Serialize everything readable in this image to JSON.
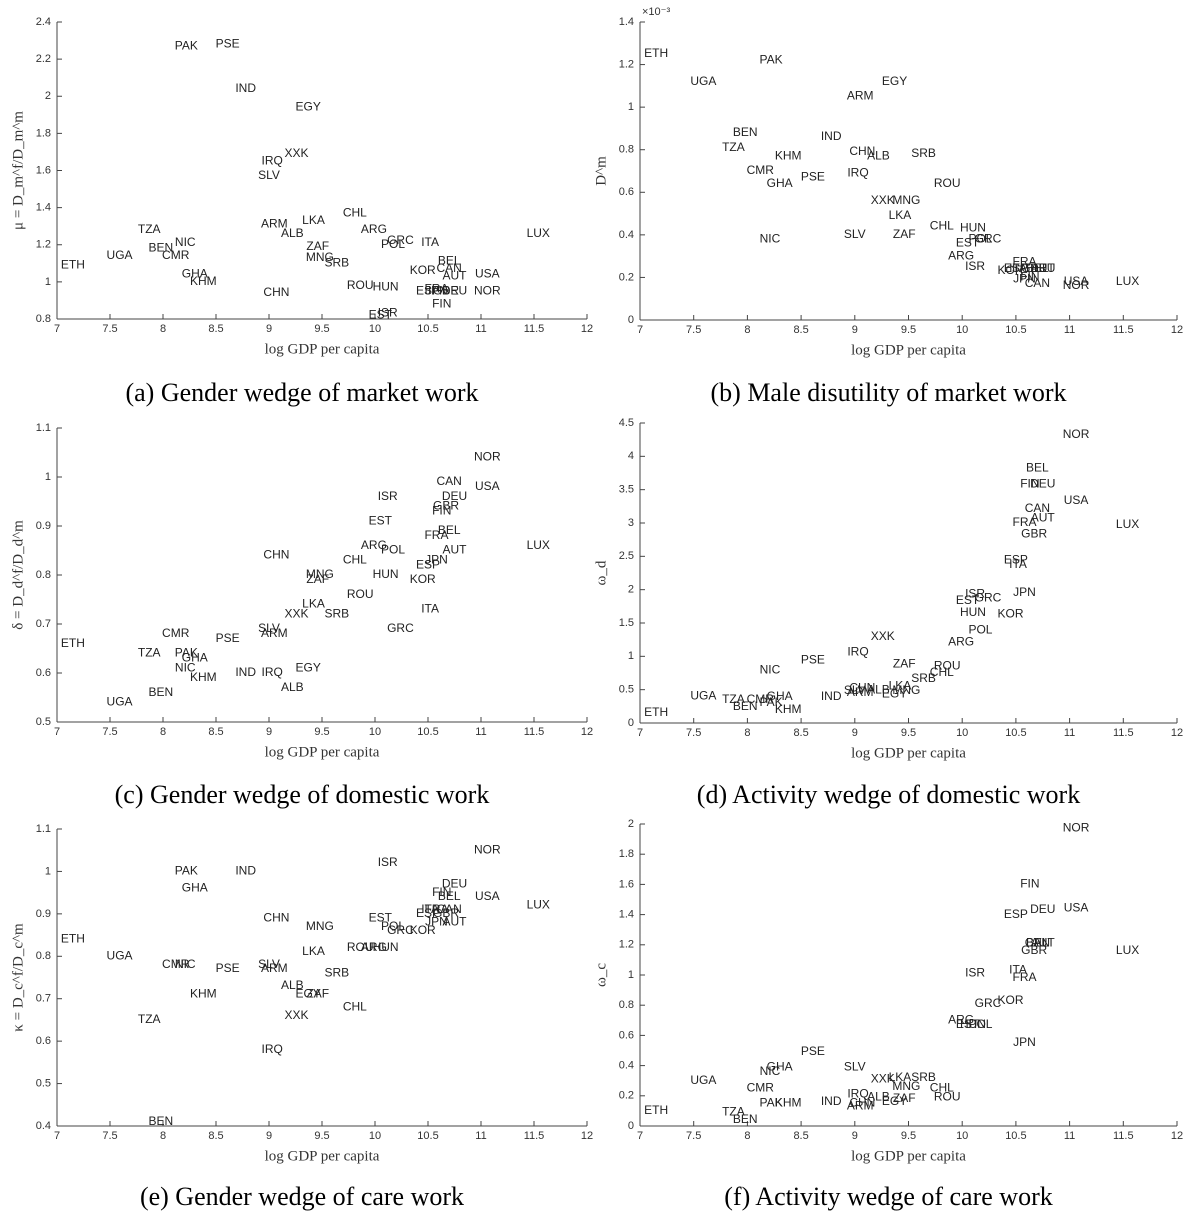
{
  "chart_data": [
    {
      "type": "scatter",
      "title": "(a) Gender wedge of market work",
      "xlabel": "log GDP per capita",
      "ylabel": "μ = D_m^f/D_m^m",
      "xlim": [
        7,
        12
      ],
      "xticks": [
        7,
        7.5,
        8,
        8.5,
        9,
        9.5,
        10,
        10.5,
        11,
        11.5,
        12
      ],
      "ylim": [
        0.8,
        2.4
      ],
      "yticks": [
        0.8,
        1,
        1.2,
        1.4,
        1.6,
        1.8,
        2,
        2.2,
        2.4
      ],
      "labels": [
        "ETH",
        "UGA",
        "TZA",
        "BEN",
        "NIC",
        "CMR",
        "PAK",
        "PSE",
        "IND",
        "GHA",
        "KHM",
        "EGY",
        "IRQ",
        "XXK",
        "SLV",
        "ARM",
        "ALB",
        "LKA",
        "CHN",
        "ZAF",
        "MNG",
        "SRB",
        "CHL",
        "ARG",
        "GRC",
        "POL",
        "ROU",
        "HUN",
        "ISR",
        "EST",
        "ITA",
        "KOR",
        "ESP",
        "BEL",
        "CAN",
        "AUT",
        "FRA",
        "JPN",
        "GBR",
        "DEU",
        "FIN",
        "USA",
        "NOR",
        "LUX"
      ],
      "x": [
        7.15,
        7.59,
        7.87,
        7.98,
        8.21,
        8.12,
        8.22,
        8.61,
        8.78,
        8.3,
        8.38,
        9.37,
        9.03,
        9.26,
        9.0,
        9.05,
        9.22,
        9.42,
        9.07,
        9.46,
        9.48,
        9.64,
        9.81,
        9.99,
        10.24,
        10.17,
        9.86,
        10.1,
        10.12,
        10.05,
        10.52,
        10.45,
        10.5,
        10.7,
        10.7,
        10.75,
        10.58,
        10.58,
        10.67,
        10.75,
        10.63,
        11.06,
        11.06,
        11.54
      ],
      "y": [
        1.09,
        1.14,
        1.28,
        1.18,
        1.21,
        1.14,
        2.27,
        2.28,
        2.04,
        1.04,
        1.0,
        1.94,
        1.65,
        1.69,
        1.57,
        1.31,
        1.26,
        1.33,
        0.94,
        1.19,
        1.13,
        1.1,
        1.37,
        1.28,
        1.22,
        1.2,
        0.98,
        0.97,
        0.83,
        0.82,
        1.21,
        1.06,
        0.95,
        1.11,
        1.07,
        1.03,
        0.96,
        0.95,
        0.95,
        0.95,
        0.88,
        1.04,
        0.95,
        1.26
      ]
    },
    {
      "type": "scatter",
      "title": "(b) Male disutility of market work",
      "xlabel": "log GDP per capita",
      "ylabel": "D^m",
      "y_exponent": "×10⁻³",
      "xlim": [
        7,
        12
      ],
      "xticks": [
        7,
        7.5,
        8,
        8.5,
        9,
        9.5,
        10,
        10.5,
        11,
        11.5,
        12
      ],
      "ylim": [
        0,
        1.4
      ],
      "yticks": [
        0,
        0.2,
        0.4,
        0.6,
        0.8,
        1,
        1.2,
        1.4
      ],
      "labels": [
        "ETH",
        "UGA",
        "TZA",
        "BEN",
        "NIC",
        "CMR",
        "PAK",
        "PSE",
        "IND",
        "GHA",
        "KHM",
        "EGY",
        "IRQ",
        "XXK",
        "SLV",
        "ARM",
        "ALB",
        "LKA",
        "CHN",
        "ZAF",
        "MNG",
        "SRB",
        "CHL",
        "ARG",
        "GRC",
        "POL",
        "ROU",
        "HUN",
        "ISR",
        "EST",
        "ITA",
        "KOR",
        "ESP",
        "BEL",
        "CAN",
        "AUT",
        "FRA",
        "JPN",
        "GBR",
        "DEU",
        "FIN",
        "USA",
        "NOR",
        "LUX"
      ],
      "x": [
        7.15,
        7.59,
        7.87,
        7.98,
        8.21,
        8.12,
        8.22,
        8.61,
        8.78,
        8.3,
        8.38,
        9.37,
        9.03,
        9.26,
        9.0,
        9.05,
        9.22,
        9.42,
        9.07,
        9.46,
        9.48,
        9.64,
        9.81,
        9.99,
        10.24,
        10.17,
        9.86,
        10.1,
        10.12,
        10.05,
        10.52,
        10.45,
        10.5,
        10.7,
        10.7,
        10.75,
        10.58,
        10.58,
        10.67,
        10.75,
        10.63,
        11.06,
        11.06,
        11.54
      ],
      "y": [
        1.25,
        1.12,
        0.81,
        0.88,
        0.38,
        0.7,
        1.22,
        0.67,
        0.86,
        0.64,
        0.77,
        1.12,
        0.69,
        0.56,
        0.4,
        1.05,
        0.77,
        0.49,
        0.79,
        0.4,
        0.56,
        0.78,
        0.44,
        0.3,
        0.38,
        0.38,
        0.64,
        0.43,
        0.25,
        0.36,
        0.24,
        0.23,
        0.24,
        0.24,
        0.17,
        0.24,
        0.27,
        0.19,
        0.24,
        0.24,
        0.2,
        0.18,
        0.16,
        0.18
      ]
    },
    {
      "type": "scatter",
      "title": "(c) Gender wedge of domestic work",
      "xlabel": "log GDP per capita",
      "ylabel": "δ = D_d^f/D_d^m",
      "xlim": [
        7,
        12
      ],
      "xticks": [
        7,
        7.5,
        8,
        8.5,
        9,
        9.5,
        10,
        10.5,
        11,
        11.5,
        12
      ],
      "ylim": [
        0.5,
        1.1
      ],
      "yticks": [
        0.5,
        0.6,
        0.7,
        0.8,
        0.9,
        1,
        1.1
      ],
      "labels": [
        "ETH",
        "UGA",
        "TZA",
        "BEN",
        "NIC",
        "CMR",
        "PAK",
        "PSE",
        "IND",
        "GHA",
        "KHM",
        "EGY",
        "IRQ",
        "XXK",
        "SLV",
        "ARM",
        "ALB",
        "LKA",
        "CHN",
        "ZAF",
        "MNG",
        "SRB",
        "CHL",
        "ARG",
        "GRC",
        "POL",
        "ROU",
        "HUN",
        "ISR",
        "EST",
        "ITA",
        "KOR",
        "ESP",
        "BEL",
        "CAN",
        "AUT",
        "FRA",
        "JPN",
        "GBR",
        "DEU",
        "FIN",
        "USA",
        "NOR",
        "LUX"
      ],
      "x": [
        7.15,
        7.59,
        7.87,
        7.98,
        8.21,
        8.12,
        8.22,
        8.61,
        8.78,
        8.3,
        8.38,
        9.37,
        9.03,
        9.26,
        9.0,
        9.05,
        9.22,
        9.42,
        9.07,
        9.46,
        9.48,
        9.64,
        9.81,
        9.99,
        10.24,
        10.17,
        9.86,
        10.1,
        10.12,
        10.05,
        10.52,
        10.45,
        10.5,
        10.7,
        10.7,
        10.75,
        10.58,
        10.58,
        10.67,
        10.75,
        10.63,
        11.06,
        11.06,
        11.54
      ],
      "y": [
        0.66,
        0.54,
        0.64,
        0.56,
        0.61,
        0.68,
        0.64,
        0.67,
        0.6,
        0.63,
        0.59,
        0.61,
        0.6,
        0.72,
        0.69,
        0.68,
        0.57,
        0.74,
        0.84,
        0.79,
        0.8,
        0.72,
        0.83,
        0.86,
        0.69,
        0.85,
        0.76,
        0.8,
        0.96,
        0.91,
        0.73,
        0.79,
        0.82,
        0.89,
        0.99,
        0.85,
        0.88,
        0.83,
        0.94,
        0.96,
        0.93,
        0.98,
        1.04,
        0.86
      ]
    },
    {
      "type": "scatter",
      "title": "(d) Activity wedge of domestic work",
      "xlabel": "log GDP per capita",
      "ylabel": "ω_d",
      "xlim": [
        7,
        12
      ],
      "xticks": [
        7,
        7.5,
        8,
        8.5,
        9,
        9.5,
        10,
        10.5,
        11,
        11.5,
        12
      ],
      "ylim": [
        0,
        4.5
      ],
      "yticks": [
        0,
        0.5,
        1,
        1.5,
        2,
        2.5,
        3,
        3.5,
        4,
        4.5
      ],
      "labels": [
        "ETH",
        "UGA",
        "TZA",
        "BEN",
        "NIC",
        "CMR",
        "PAK",
        "PSE",
        "IND",
        "GHA",
        "KHM",
        "EGY",
        "IRQ",
        "XXK",
        "SLV",
        "ARM",
        "ALB",
        "LKA",
        "CHN",
        "ZAF",
        "MNG",
        "SRB",
        "CHL",
        "ARG",
        "GRC",
        "POL",
        "ROU",
        "HUN",
        "ISR",
        "EST",
        "ITA",
        "KOR",
        "ESP",
        "BEL",
        "CAN",
        "AUT",
        "FRA",
        "JPN",
        "GBR",
        "DEU",
        "FIN",
        "USA",
        "NOR",
        "LUX"
      ],
      "x": [
        7.15,
        7.59,
        7.87,
        7.98,
        8.21,
        8.12,
        8.22,
        8.61,
        8.78,
        8.3,
        8.38,
        9.37,
        9.03,
        9.26,
        9.0,
        9.05,
        9.22,
        9.42,
        9.07,
        9.46,
        9.48,
        9.64,
        9.81,
        9.99,
        10.24,
        10.17,
        9.86,
        10.1,
        10.12,
        10.05,
        10.52,
        10.45,
        10.5,
        10.7,
        10.7,
        10.75,
        10.58,
        10.58,
        10.67,
        10.75,
        10.63,
        11.06,
        11.06,
        11.54
      ],
      "y": [
        0.15,
        0.4,
        0.35,
        0.24,
        0.79,
        0.35,
        0.3,
        0.94,
        0.39,
        0.39,
        0.2,
        0.43,
        1.06,
        1.29,
        0.48,
        0.45,
        0.49,
        0.55,
        0.52,
        0.88,
        0.48,
        0.66,
        0.75,
        1.21,
        1.87,
        1.39,
        0.85,
        1.65,
        1.93,
        1.83,
        2.37,
        1.63,
        2.44,
        3.82,
        3.21,
        3.07,
        3.0,
        1.95,
        2.83,
        3.58,
        3.58,
        3.33,
        4.32,
        2.97
      ]
    },
    {
      "type": "scatter",
      "title": "(e) Gender wedge of care work",
      "xlabel": "log GDP per capita",
      "ylabel": "κ = D_c^f/D_c^m",
      "xlim": [
        7,
        12
      ],
      "xticks": [
        7,
        7.5,
        8,
        8.5,
        9,
        9.5,
        10,
        10.5,
        11,
        11.5,
        12
      ],
      "ylim": [
        0.4,
        1.1
      ],
      "yticks": [
        0.4,
        0.5,
        0.6,
        0.7,
        0.8,
        0.9,
        1,
        1.1
      ],
      "labels": [
        "ETH",
        "UGA",
        "TZA",
        "BEN",
        "NIC",
        "CMR",
        "PAK",
        "PSE",
        "IND",
        "GHA",
        "KHM",
        "EGY",
        "IRQ",
        "XXK",
        "SLV",
        "ARM",
        "ALB",
        "LKA",
        "CHN",
        "ZAF",
        "MNG",
        "SRB",
        "CHL",
        "ARG",
        "GRC",
        "POL",
        "ROU",
        "HUN",
        "ISR",
        "EST",
        "ITA",
        "KOR",
        "ESP",
        "BEL",
        "CAN",
        "AUT",
        "FRA",
        "JPN",
        "GBR",
        "DEU",
        "FIN",
        "USA",
        "NOR",
        "LUX"
      ],
      "x": [
        7.15,
        7.59,
        7.87,
        7.98,
        8.21,
        8.12,
        8.22,
        8.61,
        8.78,
        8.3,
        8.38,
        9.37,
        9.03,
        9.26,
        9.0,
        9.05,
        9.22,
        9.42,
        9.07,
        9.46,
        9.48,
        9.64,
        9.81,
        9.99,
        10.24,
        10.17,
        9.86,
        10.1,
        10.12,
        10.05,
        10.52,
        10.45,
        10.5,
        10.7,
        10.7,
        10.75,
        10.58,
        10.58,
        10.67,
        10.75,
        10.63,
        11.06,
        11.06,
        11.54
      ],
      "y": [
        0.84,
        0.8,
        0.65,
        0.41,
        0.78,
        0.78,
        1.0,
        0.77,
        1.0,
        0.96,
        0.71,
        0.71,
        0.58,
        0.66,
        0.78,
        0.77,
        0.73,
        0.81,
        0.89,
        0.71,
        0.87,
        0.76,
        0.68,
        0.82,
        0.86,
        0.87,
        0.82,
        0.82,
        1.02,
        0.89,
        0.91,
        0.86,
        0.9,
        0.94,
        0.91,
        0.88,
        0.91,
        0.88,
        0.9,
        0.97,
        0.95,
        0.94,
        1.05,
        0.92
      ]
    },
    {
      "type": "scatter",
      "title": "(f) Activity wedge of care work",
      "xlabel": "log GDP per capita",
      "ylabel": "ω_c",
      "xlim": [
        7,
        12
      ],
      "xticks": [
        7,
        7.5,
        8,
        8.5,
        9,
        9.5,
        10,
        10.5,
        11,
        11.5,
        12
      ],
      "ylim": [
        0,
        2
      ],
      "yticks": [
        0,
        0.2,
        0.4,
        0.6,
        0.8,
        1,
        1.2,
        1.4,
        1.6,
        1.8,
        2
      ],
      "labels": [
        "ETH",
        "UGA",
        "TZA",
        "BEN",
        "NIC",
        "CMR",
        "PAK",
        "PSE",
        "IND",
        "GHA",
        "KHM",
        "EGY",
        "IRQ",
        "XXK",
        "SLV",
        "ARM",
        "ALB",
        "LKA",
        "CHN",
        "ZAF",
        "MNG",
        "SRB",
        "CHL",
        "ARG",
        "GRC",
        "POL",
        "ROU",
        "HUN",
        "ISR",
        "EST",
        "ITA",
        "KOR",
        "ESP",
        "BEL",
        "CAN",
        "AUT",
        "FRA",
        "JPN",
        "GBR",
        "DEU",
        "FIN",
        "USA",
        "NOR",
        "LUX"
      ],
      "x": [
        7.15,
        7.59,
        7.87,
        7.98,
        8.21,
        8.12,
        8.22,
        8.61,
        8.78,
        8.3,
        8.38,
        9.37,
        9.03,
        9.26,
        9.0,
        9.05,
        9.22,
        9.42,
        9.07,
        9.46,
        9.48,
        9.64,
        9.81,
        9.99,
        10.24,
        10.17,
        9.86,
        10.1,
        10.12,
        10.05,
        10.52,
        10.45,
        10.5,
        10.7,
        10.7,
        10.75,
        10.58,
        10.58,
        10.67,
        10.75,
        10.63,
        11.06,
        11.06,
        11.54
      ],
      "y": [
        0.1,
        0.3,
        0.09,
        0.04,
        0.36,
        0.25,
        0.15,
        0.49,
        0.16,
        0.39,
        0.15,
        0.16,
        0.21,
        0.31,
        0.39,
        0.13,
        0.19,
        0.32,
        0.15,
        0.18,
        0.26,
        0.32,
        0.25,
        0.7,
        0.81,
        0.67,
        0.19,
        0.67,
        1.01,
        0.67,
        1.03,
        0.83,
        1.4,
        1.21,
        1.21,
        1.21,
        0.98,
        0.55,
        1.16,
        1.43,
        1.6,
        1.44,
        1.97,
        1.16
      ]
    }
  ]
}
